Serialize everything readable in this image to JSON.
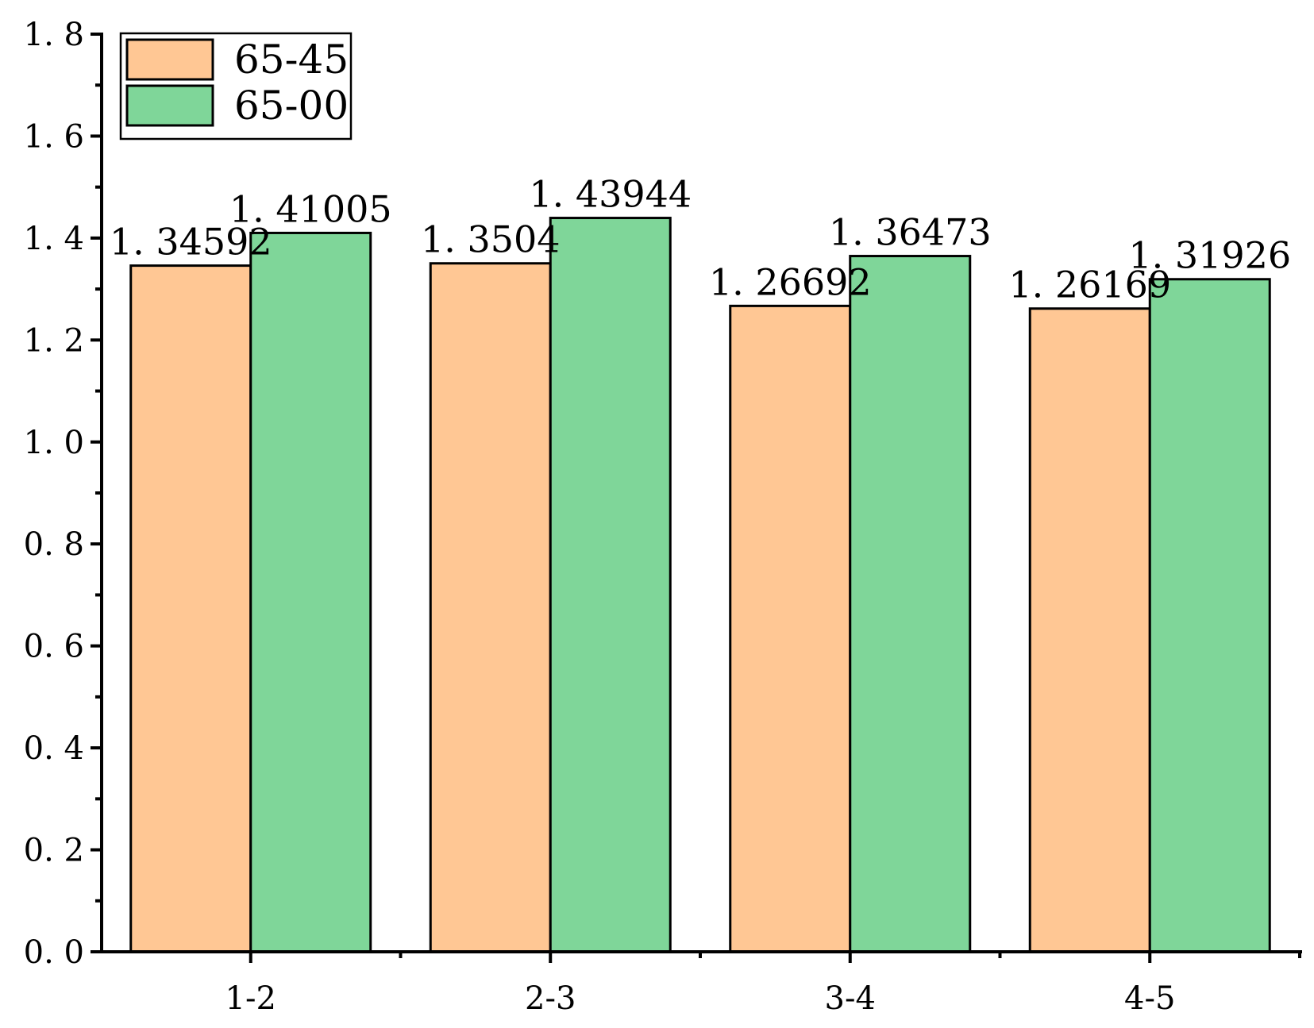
{
  "chart_data": {
    "type": "bar",
    "title": "",
    "xlabel": "",
    "ylabel": "",
    "categories": [
      "1-2",
      "2-3",
      "3-4",
      "4-5"
    ],
    "series": [
      {
        "name": "65-45",
        "color": "#FFC794",
        "values": [
          1.34592,
          1.3504,
          1.26692,
          1.26169
        ],
        "labels": [
          "1. 34592",
          "1. 3504",
          "1. 26692",
          "1. 26169"
        ]
      },
      {
        "name": "65-00",
        "color": "#7FD699",
        "values": [
          1.41005,
          1.43944,
          1.36473,
          1.31926
        ],
        "labels": [
          "1. 41005",
          "1. 43944",
          "1. 36473",
          "1. 31926"
        ]
      }
    ],
    "ylim": [
      0,
      1.8
    ],
    "yticks": [
      0.0,
      0.2,
      0.4,
      0.6,
      0.8,
      1.0,
      1.2,
      1.4,
      1.6,
      1.8
    ],
    "ytick_labels": [
      "0. 0",
      "0. 2",
      "0. 4",
      "0. 6",
      "0. 8",
      "1. 0",
      "1. 2",
      "1. 4",
      "1. 6",
      "1. 8"
    ],
    "grid": false,
    "legend_position": "top-left"
  }
}
